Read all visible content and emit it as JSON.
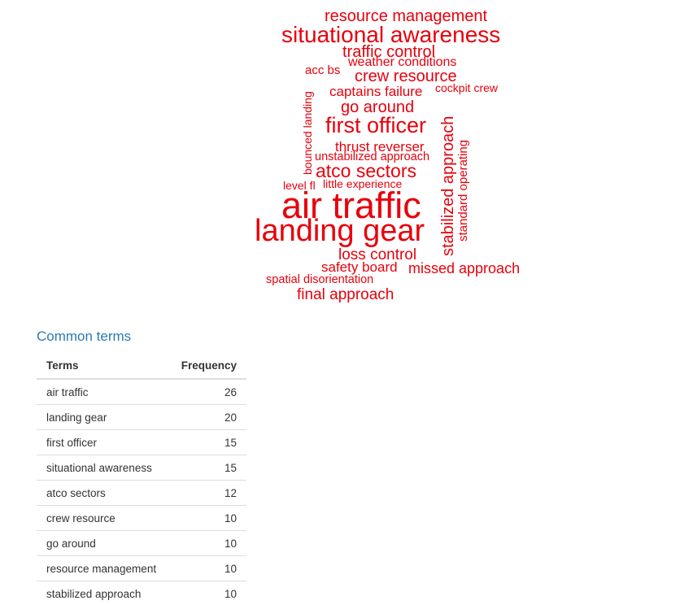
{
  "wordcloud": {
    "color": "#e8000b",
    "words": [
      {
        "text": "resource management",
        "orientation": "horizontal"
      },
      {
        "text": "situational awareness",
        "orientation": "horizontal"
      },
      {
        "text": "traffic control",
        "orientation": "horizontal"
      },
      {
        "text": "weather conditions",
        "orientation": "horizontal"
      },
      {
        "text": "acc bs",
        "orientation": "horizontal"
      },
      {
        "text": "crew resource",
        "orientation": "horizontal"
      },
      {
        "text": "cockpit crew",
        "orientation": "horizontal"
      },
      {
        "text": "captains failure",
        "orientation": "horizontal"
      },
      {
        "text": "go around",
        "orientation": "horizontal"
      },
      {
        "text": "first officer",
        "orientation": "horizontal"
      },
      {
        "text": "thrust reverser",
        "orientation": "horizontal"
      },
      {
        "text": "unstabilized approach",
        "orientation": "horizontal"
      },
      {
        "text": "atco sectors",
        "orientation": "horizontal"
      },
      {
        "text": "level fl",
        "orientation": "horizontal"
      },
      {
        "text": "little experience",
        "orientation": "horizontal"
      },
      {
        "text": "air traffic",
        "orientation": "horizontal"
      },
      {
        "text": "landing gear",
        "orientation": "horizontal"
      },
      {
        "text": "loss control",
        "orientation": "horizontal"
      },
      {
        "text": "safety board",
        "orientation": "horizontal"
      },
      {
        "text": "missed approach",
        "orientation": "horizontal"
      },
      {
        "text": "spatial disorientation",
        "orientation": "horizontal"
      },
      {
        "text": "final approach",
        "orientation": "horizontal"
      },
      {
        "text": "bounced landing",
        "orientation": "vertical"
      },
      {
        "text": "stabilized approach",
        "orientation": "vertical"
      },
      {
        "text": "standard operating",
        "orientation": "vertical"
      }
    ]
  },
  "common_terms": {
    "title": "Common terms",
    "columns": {
      "term": "Terms",
      "frequency": "Frequency"
    },
    "rows": [
      {
        "term": "air traffic",
        "frequency": "26"
      },
      {
        "term": "landing gear",
        "frequency": "20"
      },
      {
        "term": "first officer",
        "frequency": "15"
      },
      {
        "term": "situational awareness",
        "frequency": "15"
      },
      {
        "term": "atco sectors",
        "frequency": "12"
      },
      {
        "term": "crew resource",
        "frequency": "10"
      },
      {
        "term": "go around",
        "frequency": "10"
      },
      {
        "term": "resource management",
        "frequency": "10"
      },
      {
        "term": "stabilized approach",
        "frequency": "10"
      }
    ]
  }
}
